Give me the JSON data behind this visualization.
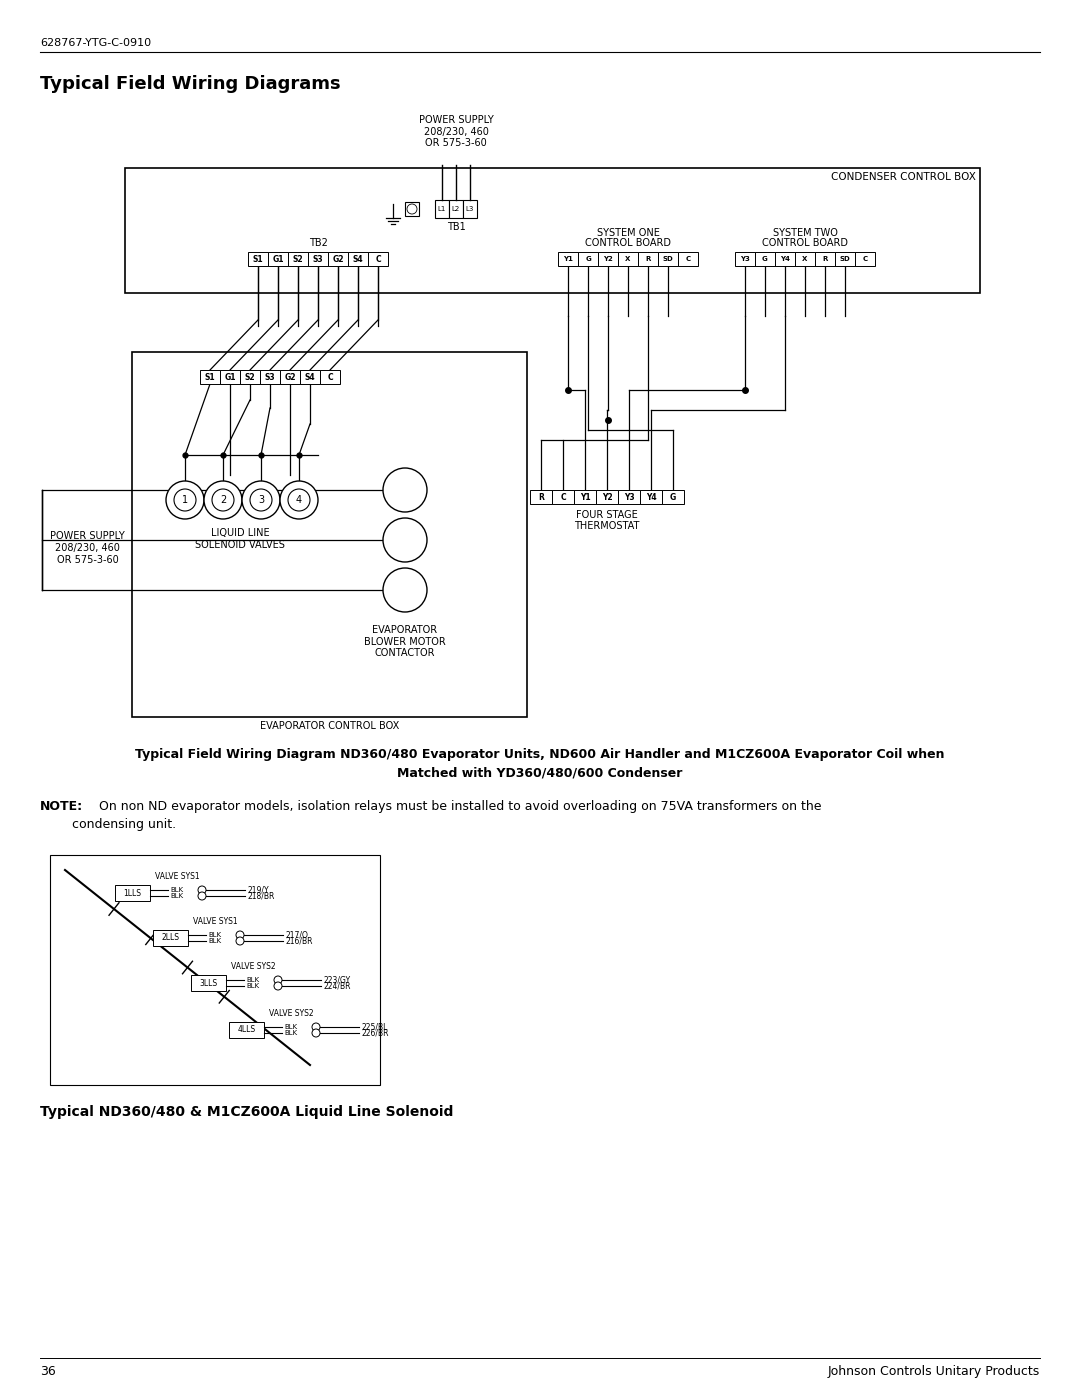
{
  "page_num": "36",
  "doc_id": "628767-YTG-C-0910",
  "footer_right": "Johnson Controls Unitary Products",
  "title": "Typical Field Wiring Diagrams",
  "caption1_line1": "Typical Field Wiring Diagram ND360/480 Evaporator Units, ND600 Air Handler and M1CZ600A Evaporator Coil when",
  "caption1_line2": "Matched with YD360/480/600 Condenser",
  "note_bold": "NOTE:",
  "note_text": " On non ND evaporator models, isolation relays must be installed to avoid overloading on 75VA transformers on the",
  "note_text2": "        condensing unit.",
  "caption2": "Typical ND360/480 & M1CZ600A Liquid Line Solenoid",
  "power_supply_top": "POWER SUPPLY\n208/230, 460\nOR 575-3-60",
  "condenser_box_label": "CONDENSER CONTROL BOX",
  "tb1_label": "TB1",
  "tb2_label": "TB2",
  "sys1_label_1": "SYSTEM ONE",
  "sys1_label_2": "CONTROL BOARD",
  "sys2_label_1": "SYSTEM TWO",
  "sys2_label_2": "CONTROL BOARD",
  "tb2_terminals": [
    "S1",
    "G1",
    "S2",
    "S3",
    "G2",
    "S4",
    "C"
  ],
  "sys1_terminals": [
    "Y1",
    "G",
    "Y2",
    "X",
    "R",
    "SD",
    "C"
  ],
  "sys2_terminals": [
    "Y3",
    "G",
    "Y4",
    "X",
    "R",
    "SD",
    "C"
  ],
  "evap_tb_terminals": [
    "S1",
    "G1",
    "S2",
    "S3",
    "G2",
    "S4",
    "C"
  ],
  "thermostat_terminals": [
    "R",
    "C",
    "Y1",
    "Y2",
    "Y3",
    "Y4",
    "G"
  ],
  "thermostat_label_1": "FOUR STAGE",
  "thermostat_label_2": "THERMOSTAT",
  "liquid_line_label": "LIQUID LINE\nSOLENOID VALVES",
  "evap_motor_label": "EVAPORATOR\nBLOWER MOTOR\nCONTACTOR",
  "evap_box_label": "EVAPORATOR CONTROL BOX",
  "power_supply_left": "POWER SUPPLY\n208/230, 460\nOR 575-3-60",
  "solenoid_labels": [
    "1LLS",
    "2LLS",
    "3LLS",
    "4LLS"
  ],
  "solenoid_wires": [
    {
      "label": "VALVE SYS1",
      "wire1": "BLK",
      "wire1_end": "219/Y",
      "wire2": "BLK",
      "wire2_end": "218/BR"
    },
    {
      "label": "VALVE SYS1",
      "wire1": "BLK",
      "wire1_end": "217/O",
      "wire2": "BLK",
      "wire2_end": "216/BR"
    },
    {
      "label": "VALVE SYS2",
      "wire1": "BLK",
      "wire1_end": "223/GY",
      "wire2": "BLK",
      "wire2_end": "224/BR"
    },
    {
      "label": "VALVE SYS2",
      "wire1": "BLK",
      "wire1_end": "225/BL",
      "wire2": "BLK",
      "wire2_end": "226/BR"
    }
  ],
  "bg_color": "#ffffff",
  "line_color": "#000000",
  "text_color": "#000000"
}
